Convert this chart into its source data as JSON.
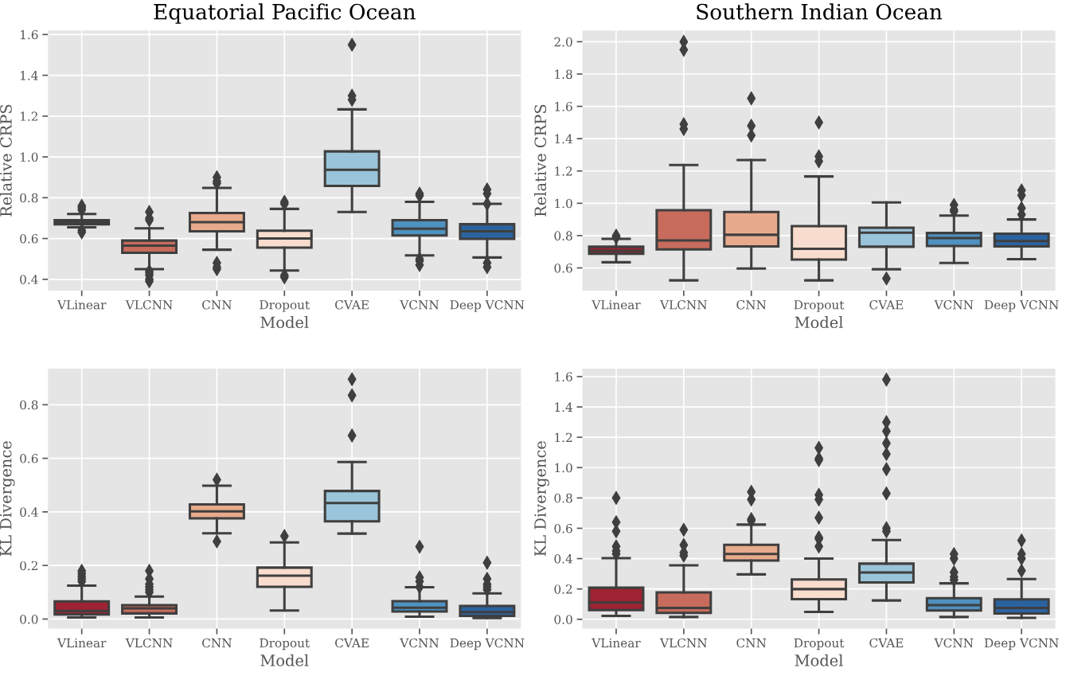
{
  "chart_data": [
    {
      "type": "box",
      "title": "Equatorial Pacific Ocean",
      "xlabel": "Model",
      "ylabel": "Relative CRPS",
      "categories": [
        "VLinear",
        "VLCNN",
        "CNN",
        "Dropout",
        "CVAE",
        "VCNN",
        "Deep VCNN"
      ],
      "colors": [
        "#9e2333",
        "#c76b5c",
        "#e8aa8c",
        "#f8dccd",
        "#9ac4d9",
        "#4f91bf",
        "#2b63a0"
      ],
      "ylim": [
        0.345,
        1.62
      ],
      "yticks": [
        0.4,
        0.6,
        0.8,
        {
          "value": 1,
          "label": "1.0"
        },
        1.2,
        1.4,
        1.6
      ],
      "grid": true,
      "marker": "diamond",
      "boxes": [
        {
          "low": 0.655,
          "q1": 0.67,
          "median": 0.68,
          "q3": 0.69,
          "high": 0.72,
          "outliers": [
            0.63,
            0.64,
            0.74,
            0.75,
            0.76
          ]
        },
        {
          "low": 0.45,
          "q1": 0.53,
          "median": 0.565,
          "q3": 0.59,
          "high": 0.65,
          "outliers": [
            0.39,
            0.4,
            0.42,
            0.43,
            0.44,
            0.69,
            0.7,
            0.73
          ]
        },
        {
          "low": 0.545,
          "q1": 0.635,
          "median": 0.68,
          "q3": 0.725,
          "high": 0.848,
          "outliers": [
            0.45,
            0.46,
            0.48,
            0.87,
            0.88,
            0.9
          ]
        },
        {
          "low": 0.443,
          "q1": 0.555,
          "median": 0.6,
          "q3": 0.638,
          "high": 0.745,
          "outliers": [
            0.41,
            0.42,
            0.77,
            0.78
          ]
        },
        {
          "low": 0.73,
          "q1": 0.858,
          "median": 0.937,
          "q3": 1.027,
          "high": 1.233,
          "outliers": [
            1.28,
            1.3,
            1.55
          ]
        },
        {
          "low": 0.517,
          "q1": 0.615,
          "median": 0.648,
          "q3": 0.69,
          "high": 0.78,
          "outliers": [
            0.47,
            0.49,
            0.5,
            0.81,
            0.82
          ]
        },
        {
          "low": 0.507,
          "q1": 0.598,
          "median": 0.635,
          "q3": 0.67,
          "high": 0.77,
          "outliers": [
            0.46,
            0.48,
            0.77,
            0.82,
            0.84
          ]
        }
      ]
    },
    {
      "type": "box",
      "title": "Southern Indian Ocean",
      "xlabel": "Model",
      "ylabel": "Relative CRPS",
      "categories": [
        "VLinear",
        "VLCNN",
        "CNN",
        "Dropout",
        "CVAE",
        "VCNN",
        "Deep VCNN"
      ],
      "colors": [
        "#9e2333",
        "#c76b5c",
        "#e8aa8c",
        "#f8dccd",
        "#9ac4d9",
        "#4f91bf",
        "#2b63a0"
      ],
      "ylim": [
        0.46,
        2.07
      ],
      "yticks": [
        0.6,
        0.8,
        {
          "value": 1,
          "label": "1.0"
        },
        1.2,
        1.4,
        1.6,
        1.8,
        {
          "value": 2,
          "label": "2.0"
        }
      ],
      "grid": true,
      "marker": "diamond",
      "boxes": [
        {
          "low": 0.635,
          "q1": 0.687,
          "median": 0.706,
          "q3": 0.731,
          "high": 0.78,
          "outliers": [
            0.79,
            0.8
          ]
        },
        {
          "low": 0.523,
          "q1": 0.714,
          "median": 0.77,
          "q3": 0.957,
          "high": 1.237,
          "outliers": [
            1.46,
            1.49,
            1.95,
            2.0
          ]
        },
        {
          "low": 0.596,
          "q1": 0.733,
          "median": 0.805,
          "q3": 0.946,
          "high": 1.268,
          "outliers": [
            1.42,
            1.48,
            1.65
          ]
        },
        {
          "low": 0.523,
          "q1": 0.652,
          "median": 0.718,
          "q3": 0.859,
          "high": 1.166,
          "outliers": [
            1.26,
            1.29,
            1.5
          ]
        },
        {
          "low": 0.592,
          "q1": 0.731,
          "median": 0.818,
          "q3": 0.849,
          "high": 1.005,
          "outliers": [
            0.535
          ]
        },
        {
          "low": 0.631,
          "q1": 0.735,
          "median": 0.785,
          "q3": 0.816,
          "high": 0.924,
          "outliers": [
            0.95,
            0.96,
            0.99
          ]
        },
        {
          "low": 0.654,
          "q1": 0.733,
          "median": 0.766,
          "q3": 0.812,
          "high": 0.9,
          "outliers": [
            0.93,
            0.97,
            1.05,
            1.08
          ]
        }
      ]
    },
    {
      "type": "box",
      "xlabel": "Model",
      "ylabel": "KL Divergence",
      "categories": [
        "VLinear",
        "VLCNN",
        "CNN",
        "Dropout",
        "CVAE",
        "VCNN",
        "Deep VCNN"
      ],
      "colors": [
        "#9e2333",
        "#c76b5c",
        "#e8aa8c",
        "#f8dccd",
        "#9ac4d9",
        "#4f91bf",
        "#2b63a0"
      ],
      "ylim": [
        -0.036,
        0.935
      ],
      "yticks": [
        {
          "value": 0,
          "label": "0.0"
        },
        0.2,
        0.4,
        0.6,
        0.8
      ],
      "grid": true,
      "marker": "diamond",
      "boxes": [
        {
          "low": 0.006,
          "q1": 0.017,
          "median": 0.03,
          "q3": 0.066,
          "high": 0.125,
          "outliers": [
            0.14,
            0.15,
            0.16,
            0.17,
            0.18
          ]
        },
        {
          "low": 0.006,
          "q1": 0.021,
          "median": 0.04,
          "q3": 0.052,
          "high": 0.084,
          "outliers": [
            0.1,
            0.11,
            0.12,
            0.13,
            0.15,
            0.18
          ]
        },
        {
          "low": 0.32,
          "q1": 0.376,
          "median": 0.402,
          "q3": 0.428,
          "high": 0.498,
          "outliers": [
            0.29,
            0.52
          ]
        },
        {
          "low": 0.032,
          "q1": 0.12,
          "median": 0.162,
          "q3": 0.192,
          "high": 0.286,
          "outliers": [
            0.31
          ]
        },
        {
          "low": 0.319,
          "q1": 0.365,
          "median": 0.433,
          "q3": 0.478,
          "high": 0.586,
          "outliers": [
            0.685,
            0.835,
            0.895
          ]
        },
        {
          "low": 0.009,
          "q1": 0.028,
          "median": 0.042,
          "q3": 0.067,
          "high": 0.119,
          "outliers": [
            0.12,
            0.14,
            0.155,
            0.27
          ]
        },
        {
          "low": 0.004,
          "q1": 0.012,
          "median": 0.026,
          "q3": 0.049,
          "high": 0.096,
          "outliers": [
            0.11,
            0.12,
            0.13,
            0.15,
            0.21
          ]
        }
      ]
    },
    {
      "type": "box",
      "xlabel": "Model",
      "ylabel": "KL Divergence",
      "categories": [
        "VLinear",
        "VLCNN",
        "CNN",
        "Dropout",
        "CVAE",
        "VCNN",
        "Deep VCNN"
      ],
      "colors": [
        "#9e2333",
        "#c76b5c",
        "#e8aa8c",
        "#f8dccd",
        "#9ac4d9",
        "#4f91bf",
        "#2b63a0"
      ],
      "ylim": [
        -0.062,
        1.653
      ],
      "yticks": [
        {
          "value": 0,
          "label": "0.0"
        },
        0.2,
        0.4,
        0.6,
        0.8,
        {
          "value": 1,
          "label": "1.0"
        },
        1.2,
        1.4,
        1.6
      ],
      "grid": true,
      "marker": "diamond",
      "boxes": [
        {
          "low": 0.022,
          "q1": 0.06,
          "median": 0.11,
          "q3": 0.208,
          "high": 0.403,
          "outliers": [
            0.43,
            0.45,
            0.48,
            0.58,
            0.64,
            0.8
          ]
        },
        {
          "low": 0.015,
          "q1": 0.042,
          "median": 0.075,
          "q3": 0.177,
          "high": 0.356,
          "outliers": [
            0.42,
            0.44,
            0.49,
            0.59
          ]
        },
        {
          "low": 0.296,
          "q1": 0.387,
          "median": 0.431,
          "q3": 0.491,
          "high": 0.624,
          "outliers": [
            0.65,
            0.66,
            0.79,
            0.84
          ]
        },
        {
          "low": 0.049,
          "q1": 0.133,
          "median": 0.199,
          "q3": 0.263,
          "high": 0.4,
          "outliers": [
            0.48,
            0.53,
            0.54,
            0.67,
            0.79,
            0.82,
            1.05,
            1.06,
            1.13
          ]
        },
        {
          "low": 0.124,
          "q1": 0.243,
          "median": 0.308,
          "q3": 0.367,
          "high": 0.522,
          "outliers": [
            0.58,
            0.6,
            0.83,
            0.99,
            1.09,
            1.16,
            1.24,
            1.3,
            1.58
          ]
        },
        {
          "low": 0.015,
          "q1": 0.058,
          "median": 0.093,
          "q3": 0.139,
          "high": 0.237,
          "outliers": [
            0.26,
            0.28,
            0.31,
            0.4,
            0.43
          ]
        },
        {
          "low": 0.009,
          "q1": 0.038,
          "median": 0.075,
          "q3": 0.131,
          "high": 0.265,
          "outliers": [
            0.32,
            0.4,
            0.43,
            0.52
          ]
        }
      ]
    }
  ]
}
